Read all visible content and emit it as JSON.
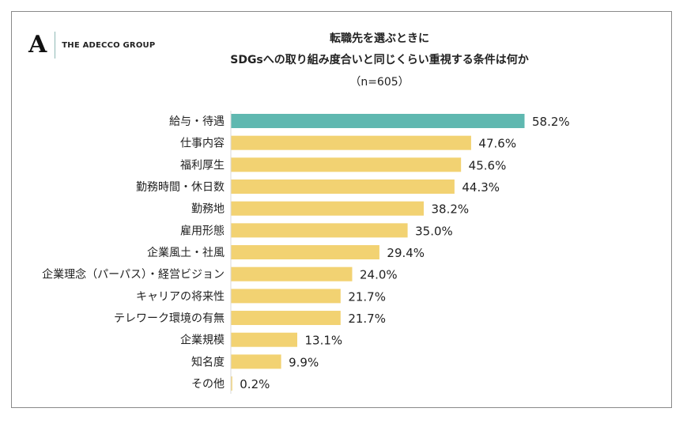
{
  "logo": {
    "mark": "A",
    "text": "THE ADECCO GROUP"
  },
  "chart_data": {
    "type": "bar",
    "orientation": "horizontal",
    "title_line1": "転職先を選ぶときに",
    "title_line2": "SDGsへの取り組み度合いと同じくらい重視する条件は何か",
    "subtitle": "（n=605）",
    "categories": [
      "給与・待遇",
      "仕事内容",
      "福利厚生",
      "勤務時間・休日数",
      "勤務地",
      "雇用形態",
      "企業風土・社風",
      "企業理念（パーパス）・経営ビジョン",
      "キャリアの将来性",
      "テレワーク環境の有無",
      "企業規模",
      "知名度",
      "その他"
    ],
    "values": [
      58.2,
      47.6,
      45.6,
      44.3,
      38.2,
      35.0,
      29.4,
      24.0,
      21.7,
      21.7,
      13.1,
      9.9,
      0.2
    ],
    "value_labels": [
      "58.2%",
      "47.6%",
      "45.6%",
      "44.3%",
      "38.2%",
      "35.0%",
      "29.4%",
      "24.0%",
      "21.7%",
      "21.7%",
      "13.1%",
      "9.9%",
      "0.2%"
    ],
    "unit": "%",
    "grid": false,
    "colors": {
      "highlight": "#5fb8b0",
      "default": "#f2d272",
      "axis": "#d9d9d9"
    }
  }
}
